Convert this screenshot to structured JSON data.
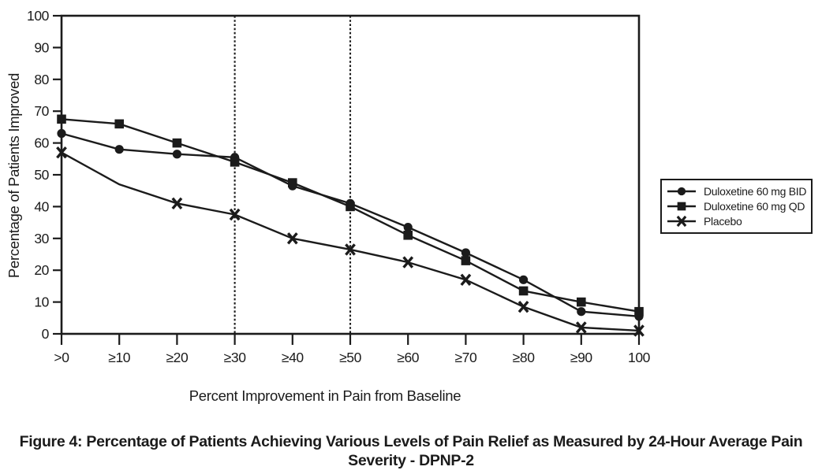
{
  "figure": {
    "caption_line1": "Figure 4: Percentage of Patients Achieving Various Levels of Pain Relief as Measured by 24-Hour Average Pain",
    "caption_line2": "Severity - DPNP-2"
  },
  "chart_data": {
    "type": "line",
    "title": "",
    "xlabel": "Percent Improvement in Pain from Baseline",
    "ylabel": "Percentage of Patients Improved",
    "categories": [
      ">0",
      "≥10",
      "≥20",
      "≥30",
      "≥40",
      "≥50",
      "≥60",
      "≥70",
      "≥80",
      "≥90",
      "100"
    ],
    "yticks": [
      0,
      10,
      20,
      30,
      40,
      50,
      60,
      70,
      80,
      90,
      100
    ],
    "ylim": [
      0,
      100
    ],
    "grid": false,
    "legend_position": "right-outside",
    "reference_lines": [
      "≥30",
      "≥50"
    ],
    "ink_color": "#1b1b1b",
    "series": [
      {
        "name": "Duloxetine 60 mg BID",
        "marker": "circle",
        "values": [
          63,
          58,
          56.5,
          55.5,
          46.5,
          41,
          33.5,
          25.5,
          17,
          7,
          5.5
        ]
      },
      {
        "name": "Duloxetine 60 mg QD",
        "marker": "square",
        "values": [
          67.5,
          66,
          60,
          54,
          47.5,
          40,
          31,
          23,
          13.5,
          10,
          7
        ]
      },
      {
        "name": "Placebo",
        "marker": "x",
        "values": [
          57,
          47,
          41,
          37.5,
          30,
          26.5,
          22.5,
          17,
          8.5,
          2,
          1
        ],
        "no_marker_at": [
          1
        ]
      }
    ]
  }
}
